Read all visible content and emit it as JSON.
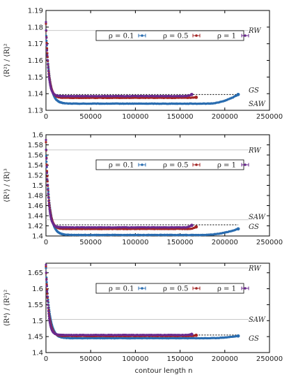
{
  "colors": {
    "rho_0_1": "#2a6db0",
    "rho_0_5": "#a32424",
    "rho_1": "#6b2a8e",
    "ref_line": "#c8c8c8",
    "gs_line": "#000000"
  },
  "xlabel": "contour length n",
  "legend": [
    {
      "label": "ρ = 0.1",
      "color_key": "rho_0_1"
    },
    {
      "label": "ρ = 0.5",
      "color_key": "rho_0_5"
    },
    {
      "label": "ρ = 1",
      "color_key": "rho_1"
    }
  ],
  "chart_data": [
    {
      "type": "scatter",
      "ylabel": "⟨R²⟩ / ⟨R⟩²",
      "xlim": [
        0,
        250000
      ],
      "ylim": [
        1.13,
        1.19
      ],
      "xticks": [
        0,
        50000,
        100000,
        150000,
        200000,
        250000
      ],
      "yticks": [
        1.13,
        1.14,
        1.15,
        1.16,
        1.17,
        1.18,
        1.19
      ],
      "ytick_decimals": 2,
      "ref_lines": [
        {
          "label": "RW",
          "y": 1.178,
          "style": "solid"
        },
        {
          "label": "GS",
          "y": 1.1395,
          "style": "dotted",
          "x_end": 215000
        },
        {
          "label": "SAW",
          "y": 1.1355,
          "style": "solid",
          "label_only": true
        }
      ],
      "series": [
        {
          "name": "ρ = 0.1",
          "start": 1.178,
          "plateau": 1.134,
          "tau": 4000,
          "x_end": 215000,
          "tail_to": 1.1395,
          "tail_from": 180000,
          "color_key": "rho_0_1"
        },
        {
          "name": "ρ = 0.5",
          "start": 1.182,
          "plateau": 1.1375,
          "tau": 3000,
          "x_end": 168000,
          "tail_to": 1.1378,
          "tail_from": 160000,
          "color_key": "rho_0_5"
        },
        {
          "name": "ρ = 1",
          "start": 1.183,
          "plateau": 1.1385,
          "tau": 2500,
          "x_end": 163000,
          "tail_to": 1.1395,
          "tail_from": 155000,
          "color_key": "rho_1"
        }
      ]
    },
    {
      "type": "scatter",
      "ylabel": "⟨R³⟩ / ⟨R⟩³",
      "xlim": [
        0,
        250000
      ],
      "ylim": [
        1.4,
        1.6
      ],
      "xticks": [
        0,
        50000,
        100000,
        150000,
        200000,
        250000
      ],
      "yticks": [
        1.4,
        1.42,
        1.44,
        1.46,
        1.48,
        1.5,
        1.52,
        1.54,
        1.56,
        1.58,
        1.6
      ],
      "ytick_decimals": 2,
      "ref_lines": [
        {
          "label": "RW",
          "y": 1.57,
          "style": "solid"
        },
        {
          "label": "SAW",
          "y": 1.432,
          "style": "solid"
        },
        {
          "label": "GS",
          "y": 1.422,
          "style": "dotted",
          "x_end": 215000
        }
      ],
      "series": [
        {
          "name": "ρ = 0.1",
          "start": 1.57,
          "plateau": 1.402,
          "tau": 4000,
          "x_end": 215000,
          "tail_to": 1.414,
          "tail_from": 175000,
          "color_key": "rho_0_1"
        },
        {
          "name": "ρ = 0.5",
          "start": 1.585,
          "plateau": 1.414,
          "tau": 3000,
          "x_end": 168000,
          "tail_to": 1.418,
          "tail_from": 160000,
          "color_key": "rho_0_5"
        },
        {
          "name": "ρ = 1",
          "start": 1.59,
          "plateau": 1.417,
          "tau": 2500,
          "x_end": 163000,
          "tail_to": 1.421,
          "tail_from": 155000,
          "color_key": "rho_1"
        }
      ]
    },
    {
      "type": "scatter",
      "ylabel": "⟨R⁴⟩ / ⟨R²⟩²",
      "xlim": [
        0,
        250000
      ],
      "ylim": [
        1.4,
        1.68
      ],
      "xticks": [
        0,
        50000,
        100000,
        150000,
        200000,
        250000
      ],
      "yticks": [
        1.4,
        1.45,
        1.5,
        1.55,
        1.6,
        1.65
      ],
      "ytick_decimals": 2,
      "ref_lines": [
        {
          "label": "RW",
          "y": 1.665,
          "style": "solid"
        },
        {
          "label": "SAW",
          "y": 1.504,
          "style": "solid"
        },
        {
          "label": "GS",
          "y": 1.455,
          "style": "dotted",
          "x_end": 215000
        }
      ],
      "series": [
        {
          "name": "ρ = 0.1",
          "start": 1.665,
          "plateau": 1.445,
          "tau": 4000,
          "x_end": 215000,
          "tail_to": 1.452,
          "tail_from": 180000,
          "color_key": "rho_0_1"
        },
        {
          "name": "ρ = 0.5",
          "start": 1.67,
          "plateau": 1.452,
          "tau": 3000,
          "x_end": 168000,
          "tail_to": 1.454,
          "tail_from": 160000,
          "color_key": "rho_0_5"
        },
        {
          "name": "ρ = 1",
          "start": 1.675,
          "plateau": 1.455,
          "tau": 2500,
          "x_end": 163000,
          "tail_to": 1.457,
          "tail_from": 155000,
          "color_key": "rho_1"
        }
      ]
    }
  ]
}
